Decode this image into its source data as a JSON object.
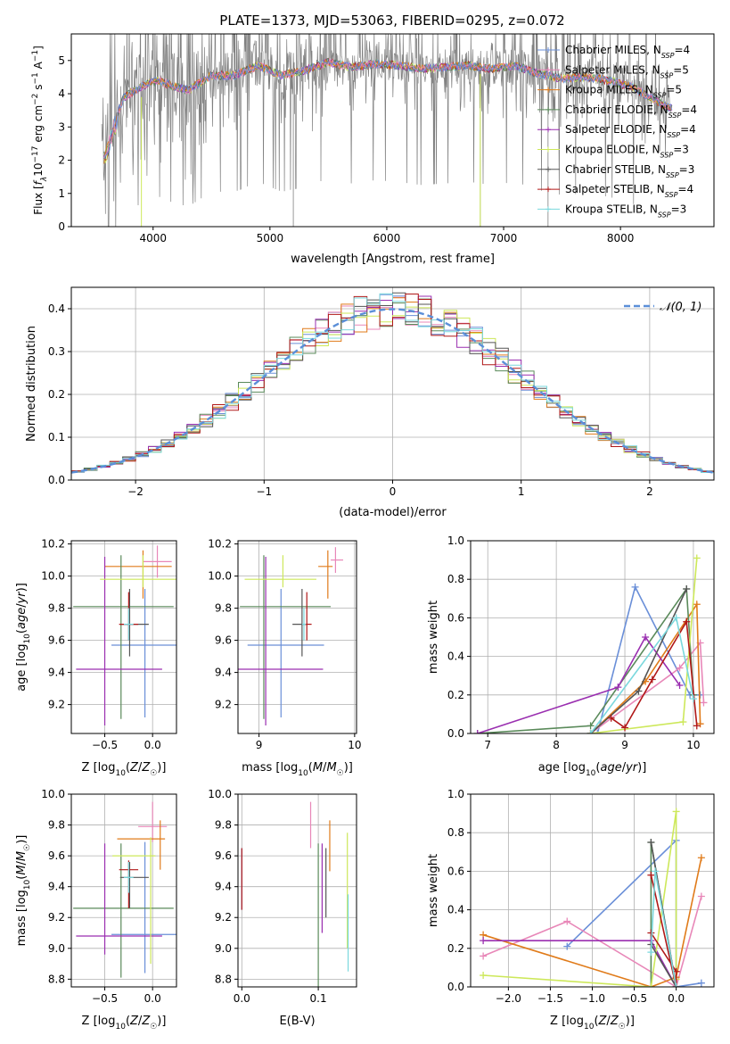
{
  "figure": {
    "title": "PLATE=1373, MJD=53063, FIBERID=0295, z=0.072"
  },
  "colors": {
    "Chabrier MILES": "#6a8fd8",
    "Salpeter MILES": "#e887b8",
    "Kroupa MILES": "#e07b1a",
    "Chabrier ELODIE": "#5a8a5a",
    "Salpeter ELODIE": "#9a2fb0",
    "Kroupa ELODIE": "#cde85a",
    "Chabrier STELIB": "#555555",
    "Salpeter STELIB": "#b01818",
    "Kroupa STELIB": "#7ad8dd",
    "data": "#808080",
    "gaussian": "#5b8fd8"
  },
  "chart_data": [
    {
      "id": "spectrum",
      "type": "line",
      "xlabel": "wavelength [Angstrom, rest frame]",
      "ylabel": "Flux [f_λ 10^-17 erg cm^-2 s^-1 A^-1]",
      "xlim": [
        3300,
        8800
      ],
      "ylim": [
        0,
        5.8
      ],
      "xticks": [
        4000,
        5000,
        6000,
        7000,
        8000
      ],
      "yticks": [
        0,
        1,
        2,
        3,
        4,
        5
      ],
      "legend_placement": "right",
      "legend": [
        {
          "label": "Chabrier MILES, N",
          "sub": "SSP",
          "n": "=4"
        },
        {
          "label": "Salpeter MILES, N",
          "sub": "SSP",
          "n": "=5"
        },
        {
          "label": "Kroupa MILES, N",
          "sub": "SSP",
          "n": "=5"
        },
        {
          "label": "Chabrier ELODIE, N",
          "sub": "SSP",
          "n": "=4"
        },
        {
          "label": "Salpeter ELODIE, N",
          "sub": "SSP",
          "n": "=4"
        },
        {
          "label": "Kroupa ELODIE, N",
          "sub": "SSP",
          "n": "=3"
        },
        {
          "label": "Chabrier STELIB, N",
          "sub": "SSP",
          "n": "=3"
        },
        {
          "label": "Salpeter STELIB, N",
          "sub": "SSP",
          "n": "=4"
        },
        {
          "label": "Kroupa STELIB, N",
          "sub": "SSP",
          "n": "=3"
        }
      ],
      "model_continuum": {
        "x": [
          3580,
          3650,
          3750,
          3850,
          3950,
          4050,
          4150,
          4300,
          4500,
          4700,
          4900,
          5100,
          5300,
          5500,
          5700,
          5900,
          6100,
          6300,
          6500,
          6700,
          6900,
          7100,
          7300,
          7500,
          7700,
          7900,
          8100,
          8300,
          8400,
          8500
        ],
        "y": [
          2.2,
          3.0,
          3.9,
          4.1,
          4.3,
          4.4,
          4.25,
          4.1,
          4.55,
          4.55,
          4.85,
          4.55,
          4.7,
          4.95,
          4.8,
          4.9,
          4.85,
          4.75,
          4.8,
          4.85,
          4.75,
          4.85,
          4.6,
          4.45,
          4.5,
          4.4,
          4.2,
          3.8,
          3.6,
          3.5
        ]
      }
    },
    {
      "id": "residuals",
      "type": "bar",
      "xlabel": "(data-model)/error",
      "ylabel": "Normed distribution",
      "xlim": [
        -2.5,
        2.5
      ],
      "ylim": [
        0,
        0.45
      ],
      "xticks": [
        -2,
        -1,
        0,
        1,
        2
      ],
      "yticks": [
        0.0,
        0.1,
        0.2,
        0.3,
        0.4
      ],
      "legend_label": "𝒩(0, 1)",
      "legend_placement": "top-right"
    },
    {
      "id": "age-z",
      "type": "scatter",
      "xlabel": "Z [log₁₀(Z/Z☉)]",
      "ylabel": "age  [log₁₀(age/yr)]",
      "xlim": [
        -0.85,
        0.25
      ],
      "ylim": [
        9.02,
        10.22
      ],
      "xticks": [
        -0.5,
        0.0
      ],
      "yticks": [
        9.2,
        9.4,
        9.6,
        9.8,
        10.0,
        10.2
      ],
      "points": [
        {
          "m": "Chabrier MILES",
          "x": -0.08,
          "xe": [
            0.35,
            0.35
          ],
          "y": 9.57,
          "ye": [
            0.45,
            0.35
          ]
        },
        {
          "m": "Salpeter MILES",
          "x": 0.05,
          "xe": [
            0.15,
            0.15
          ],
          "y": 10.09,
          "ye": [
            0.1,
            0.1
          ]
        },
        {
          "m": "Kroupa MILES",
          "x": -0.1,
          "xe": [
            0.4,
            0.3
          ],
          "y": 10.06,
          "ye": [
            0.2,
            0.1
          ]
        },
        {
          "m": "Chabrier ELODIE",
          "x": -0.33,
          "xe": [
            0.5,
            0.55
          ],
          "y": 9.81,
          "ye": [
            0.7,
            0.32
          ]
        },
        {
          "m": "Salpeter ELODIE",
          "x": -0.5,
          "xe": [
            0.3,
            0.6
          ],
          "y": 9.42,
          "ye": [
            0.35,
            0.7
          ]
        },
        {
          "m": "Kroupa ELODIE",
          "x": -0.1,
          "xe": [
            0.45,
            0.35
          ],
          "y": 9.98,
          "ye": [
            0.05,
            0.15
          ]
        },
        {
          "m": "Chabrier STELIB",
          "x": -0.24,
          "xe": [
            0.1,
            0.2
          ],
          "y": 9.7,
          "ye": [
            0.2,
            0.22
          ]
        },
        {
          "m": "Salpeter STELIB",
          "x": -0.25,
          "xe": [
            0.1,
            0.1
          ],
          "y": 9.7,
          "ye": [
            0.1,
            0.2
          ]
        },
        {
          "m": "Kroupa STELIB",
          "x": -0.25,
          "xe": [
            0.05,
            0.05
          ],
          "y": 9.7,
          "ye": [
            0.1,
            0.1
          ]
        }
      ]
    },
    {
      "id": "age-mass",
      "type": "scatter",
      "xlabel": "mass [log₁₀(M/M☉)]",
      "ylabel": "",
      "xlim": [
        8.78,
        10.02
      ],
      "ylim": [
        9.02,
        10.22
      ],
      "xticks": [
        9,
        10
      ],
      "yticks": [
        9.2,
        9.4,
        9.6,
        9.8,
        10.0,
        10.2
      ],
      "points": [
        {
          "m": "Chabrier MILES",
          "x": 9.23,
          "xe": [
            0.35,
            0.45
          ],
          "y": 9.57,
          "ye": [
            0.45,
            0.35
          ]
        },
        {
          "m": "Salpeter MILES",
          "x": 9.8,
          "xe": [
            0.05,
            0.08
          ],
          "y": 10.1,
          "ye": [
            0.08,
            0.08
          ]
        },
        {
          "m": "Kroupa MILES",
          "x": 9.72,
          "xe": [
            0.1,
            0.05
          ],
          "y": 10.06,
          "ye": [
            0.2,
            0.1
          ]
        },
        {
          "m": "Chabrier ELODIE",
          "x": 9.05,
          "xe": [
            0.25,
            0.7
          ],
          "y": 9.81,
          "ye": [
            0.7,
            0.32
          ]
        },
        {
          "m": "Salpeter ELODIE",
          "x": 9.07,
          "xe": [
            0.3,
            0.6
          ],
          "y": 9.42,
          "ye": [
            0.35,
            0.7
          ]
        },
        {
          "m": "Kroupa ELODIE",
          "x": 9.25,
          "xe": [
            0.4,
            0.35
          ],
          "y": 9.98,
          "ye": [
            0.05,
            0.15
          ]
        },
        {
          "m": "Chabrier STELIB",
          "x": 9.45,
          "xe": [
            0.1,
            0.05
          ],
          "y": 9.7,
          "ye": [
            0.2,
            0.22
          ]
        },
        {
          "m": "Salpeter STELIB",
          "x": 9.5,
          "xe": [
            0.05,
            0.05
          ],
          "y": 9.7,
          "ye": [
            0.1,
            0.2
          ]
        },
        {
          "m": "Kroupa STELIB",
          "x": 9.47,
          "xe": [
            0.02,
            0.02
          ],
          "y": 9.7,
          "ye": [
            0.1,
            0.1
          ]
        }
      ]
    },
    {
      "id": "weight-age",
      "type": "line",
      "xlabel": "age  [log₁₀(age/yr)]",
      "ylabel": "mass weight",
      "xlim": [
        6.75,
        10.3
      ],
      "ylim": [
        0,
        1
      ],
      "xticks": [
        7,
        8,
        9,
        10
      ],
      "yticks": [
        0.0,
        0.2,
        0.4,
        0.6,
        0.8,
        1.0
      ],
      "series": [
        {
          "m": "Chabrier MILES",
          "x": [
            8.6,
            9.15,
            9.95,
            10.1
          ],
          "y": [
            0.0,
            0.76,
            0.2,
            0.2
          ]
        },
        {
          "m": "Salpeter MILES",
          "x": [
            8.5,
            9.8,
            10.1,
            10.15
          ],
          "y": [
            0.0,
            0.34,
            0.47,
            0.16
          ]
        },
        {
          "m": "Kroupa MILES",
          "x": [
            8.5,
            9.3,
            10.05,
            10.1
          ],
          "y": [
            0.0,
            0.27,
            0.67,
            0.05
          ]
        },
        {
          "m": "Chabrier ELODIE",
          "x": [
            6.85,
            8.5,
            9.9,
            10.0
          ],
          "y": [
            0.0,
            0.04,
            0.75,
            0.2
          ]
        },
        {
          "m": "Salpeter ELODIE",
          "x": [
            6.85,
            8.9,
            9.3,
            9.8
          ],
          "y": [
            0.0,
            0.24,
            0.5,
            0.25
          ]
        },
        {
          "m": "Kroupa ELODIE",
          "x": [
            8.5,
            9.85,
            10.05
          ],
          "y": [
            0.0,
            0.06,
            0.91
          ]
        },
        {
          "m": "Chabrier STELIB",
          "x": [
            8.5,
            9.2,
            9.9
          ],
          "y": [
            0.0,
            0.22,
            0.75
          ]
        },
        {
          "m": "Salpeter STELIB",
          "x": [
            8.8,
            9.0,
            9.4,
            9.9,
            10.05
          ],
          "y": [
            0.08,
            0.03,
            0.28,
            0.58,
            0.04
          ]
        },
        {
          "m": "Kroupa STELIB",
          "x": [
            8.5,
            9.75,
            10.0
          ],
          "y": [
            0.0,
            0.6,
            0.18
          ]
        }
      ]
    },
    {
      "id": "mass-z",
      "type": "scatter",
      "xlabel": "Z [log₁₀(Z/Z☉)]",
      "ylabel": "mass [log₁₀(M/M☉)]",
      "xlim": [
        -0.85,
        0.25
      ],
      "ylim": [
        8.75,
        10.0
      ],
      "xticks": [
        -0.5,
        0.0
      ],
      "yticks": [
        8.8,
        9.0,
        9.2,
        9.4,
        9.6,
        9.8,
        10.0
      ],
      "points": [
        {
          "m": "Chabrier MILES",
          "x": -0.08,
          "xe": [
            0.35,
            0.35
          ],
          "y": 9.09,
          "ye": [
            0.25,
            0.6
          ]
        },
        {
          "m": "Salpeter MILES",
          "x": 0.0,
          "xe": [
            0.15,
            0.15
          ],
          "y": 9.79,
          "ye": [
            0.1,
            0.16
          ]
        },
        {
          "m": "Kroupa MILES",
          "x": 0.08,
          "xe": [
            0.45,
            0.05
          ],
          "y": 9.71,
          "ye": [
            0.2,
            0.12
          ]
        },
        {
          "m": "Chabrier ELODIE",
          "x": -0.33,
          "xe": [
            0.5,
            0.55
          ],
          "y": 9.26,
          "ye": [
            0.45,
            0.42
          ]
        },
        {
          "m": "Salpeter ELODIE",
          "x": -0.5,
          "xe": [
            0.3,
            0.6
          ],
          "y": 9.08,
          "ye": [
            0.12,
            0.6
          ]
        },
        {
          "m": "Kroupa ELODIE",
          "x": -0.02,
          "xe": [
            0.4,
            0.05
          ],
          "y": 9.6,
          "ye": [
            0.7,
            0.12
          ]
        },
        {
          "m": "Chabrier STELIB",
          "x": -0.24,
          "xe": [
            0.1,
            0.2
          ],
          "y": 9.46,
          "ye": [
            0.2,
            0.1
          ]
        },
        {
          "m": "Salpeter STELIB",
          "x": -0.25,
          "xe": [
            0.1,
            0.1
          ],
          "y": 9.51,
          "ye": [
            0.25,
            0.06
          ]
        },
        {
          "m": "Kroupa STELIB",
          "x": -0.25,
          "xe": [
            0.05,
            0.05
          ],
          "y": 9.46,
          "ye": [
            0.1,
            0.1
          ]
        }
      ]
    },
    {
      "id": "mass-ebv",
      "type": "scatter",
      "xlabel": "E(B-V)",
      "ylabel": "",
      "xlim": [
        -0.005,
        0.15
      ],
      "ylim": [
        8.75,
        10.0
      ],
      "xticks": [
        0.0,
        0.1
      ],
      "yticks": [
        8.8,
        9.0,
        9.2,
        9.4,
        9.6,
        9.8,
        10.0
      ],
      "points": [
        {
          "m": "Chabrier MILES",
          "x": 0.0,
          "xe": [
            0,
            0
          ],
          "y": 9.45,
          "ye": [
            0.2,
            0.2
          ]
        },
        {
          "m": "Salpeter MILES",
          "x": 0.09,
          "xe": [
            0,
            0
          ],
          "y": 9.81,
          "ye": [
            0.16,
            0.14
          ]
        },
        {
          "m": "Kroupa MILES",
          "x": 0.115,
          "xe": [
            0,
            0
          ],
          "y": 9.65,
          "ye": [
            0.15,
            0.18
          ]
        },
        {
          "m": "Chabrier ELODIE",
          "x": 0.1,
          "xe": [
            0,
            0
          ],
          "y": 9.3,
          "ye": [
            0.55,
            0.38
          ]
        },
        {
          "m": "Salpeter ELODIE",
          "x": 0.105,
          "xe": [
            0,
            0
          ],
          "y": 9.4,
          "ye": [
            0.3,
            0.28
          ]
        },
        {
          "m": "Kroupa ELODIE",
          "x": 0.138,
          "xe": [
            0,
            0
          ],
          "y": 9.3,
          "ye": [
            0.3,
            0.45
          ]
        },
        {
          "m": "Chabrier STELIB",
          "x": 0.11,
          "xe": [
            0,
            0
          ],
          "y": 9.45,
          "ye": [
            0.25,
            0.2
          ]
        },
        {
          "m": "Salpeter STELIB",
          "x": 0.0,
          "xe": [
            0,
            0
          ],
          "y": 9.45,
          "ye": [
            0.2,
            0.2
          ]
        },
        {
          "m": "Kroupa STELIB",
          "x": 0.139,
          "xe": [
            0,
            0
          ],
          "y": 9.1,
          "ye": [
            0.25,
            0.25
          ]
        }
      ]
    },
    {
      "id": "weight-z",
      "type": "line",
      "xlabel": "Z [log₁₀(Z/Z☉)]",
      "ylabel": "mass weight",
      "xlim": [
        -2.45,
        0.45
      ],
      "ylim": [
        0,
        1
      ],
      "xticks": [
        -2.0,
        -1.5,
        -1.0,
        -0.5,
        0.0
      ],
      "yticks": [
        0.0,
        0.2,
        0.4,
        0.6,
        0.8,
        1.0
      ],
      "series": [
        {
          "m": "Chabrier MILES",
          "x": [
            -1.3,
            0.0,
            0.0,
            0.3
          ],
          "y": [
            0.21,
            0.76,
            0.0,
            0.02
          ]
        },
        {
          "m": "Salpeter MILES",
          "x": [
            -2.3,
            -1.3,
            0.0,
            0.3
          ],
          "y": [
            0.16,
            0.34,
            0.0,
            0.47
          ]
        },
        {
          "m": "Kroupa MILES",
          "x": [
            -2.3,
            -0.3,
            0.0,
            0.3
          ],
          "y": [
            0.27,
            0.0,
            0.05,
            0.67
          ]
        },
        {
          "m": "Chabrier ELODIE",
          "x": [
            -0.3,
            -0.3,
            0.0
          ],
          "y": [
            0.0,
            0.75,
            0.0
          ]
        },
        {
          "m": "Salpeter ELODIE",
          "x": [
            -2.3,
            -0.3,
            0.0
          ],
          "y": [
            0.24,
            0.24,
            0.0
          ]
        },
        {
          "m": "Kroupa ELODIE",
          "x": [
            -2.3,
            -0.3,
            0.0,
            0.0
          ],
          "y": [
            0.06,
            0.0,
            0.91,
            0.04
          ]
        },
        {
          "m": "Chabrier STELIB",
          "x": [
            -0.3,
            0.0,
            -0.3
          ],
          "y": [
            0.22,
            0.0,
            0.75
          ]
        },
        {
          "m": "Salpeter STELIB",
          "x": [
            -0.3,
            0.0,
            0.0,
            -0.3
          ],
          "y": [
            0.58,
            0.0,
            0.08,
            0.28
          ]
        },
        {
          "m": "Kroupa STELIB",
          "x": [
            -0.3,
            -0.25,
            0.0
          ],
          "y": [
            0.18,
            0.6,
            0.0
          ]
        }
      ]
    }
  ]
}
